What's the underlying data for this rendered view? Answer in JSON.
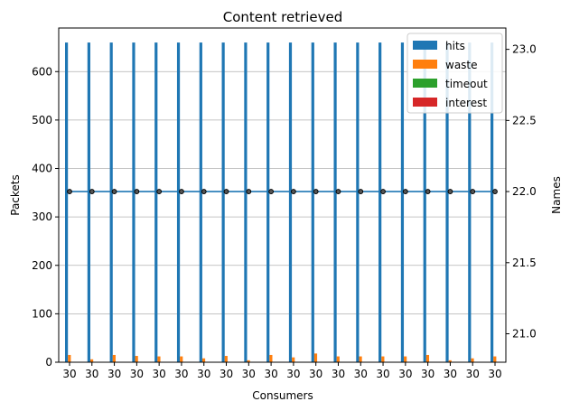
{
  "chart_data": {
    "type": "bar",
    "title": "Content retrieved",
    "xlabel": "Consumers",
    "ylabel": "Packets",
    "y2label": "Names",
    "categories": [
      "30",
      "30",
      "30",
      "30",
      "30",
      "30",
      "30",
      "30",
      "30",
      "30",
      "30",
      "30",
      "30",
      "30",
      "30",
      "30",
      "30",
      "30",
      "30",
      "30"
    ],
    "ylim": [
      0,
      690
    ],
    "yticks": [
      0,
      100,
      200,
      300,
      400,
      500,
      600
    ],
    "y2lim": [
      20.8,
      23.15
    ],
    "y2ticks": [
      21.0,
      21.5,
      22.0,
      22.5,
      23.0
    ],
    "grid": "horizontal",
    "legend_position": "top-right",
    "series": [
      {
        "name": "hits",
        "color": "#1f77b4",
        "values": [
          660,
          660,
          660,
          660,
          660,
          660,
          660,
          660,
          660,
          660,
          660,
          660,
          660,
          660,
          660,
          660,
          660,
          660,
          660,
          660
        ]
      },
      {
        "name": "waste",
        "color": "#ff7f0e",
        "values": [
          15,
          6,
          15,
          13,
          12,
          12,
          8,
          13,
          4,
          15,
          10,
          18,
          12,
          12,
          12,
          12,
          15,
          4,
          8,
          12
        ]
      },
      {
        "name": "timeout",
        "color": "#2ca02c",
        "values": [
          0,
          0,
          0,
          0,
          0,
          0,
          0,
          0,
          0,
          0,
          0,
          0,
          0,
          0,
          0,
          0,
          0,
          0,
          0,
          0
        ]
      },
      {
        "name": "interest",
        "color": "#d62728",
        "values": [
          0,
          0,
          0,
          0,
          0,
          0,
          0,
          0,
          0,
          0,
          0,
          0,
          0,
          0,
          0,
          0,
          0,
          0,
          0,
          0
        ]
      }
    ],
    "line_series": {
      "axis": "right",
      "color": "#1f77b4",
      "values": [
        22.0,
        22.0,
        22.0,
        22.0,
        22.0,
        22.0,
        22.0,
        22.0,
        22.0,
        22.0,
        22.0,
        22.0,
        22.0,
        22.0,
        22.0,
        22.0,
        22.0,
        22.0,
        22.0,
        22.0
      ]
    }
  }
}
